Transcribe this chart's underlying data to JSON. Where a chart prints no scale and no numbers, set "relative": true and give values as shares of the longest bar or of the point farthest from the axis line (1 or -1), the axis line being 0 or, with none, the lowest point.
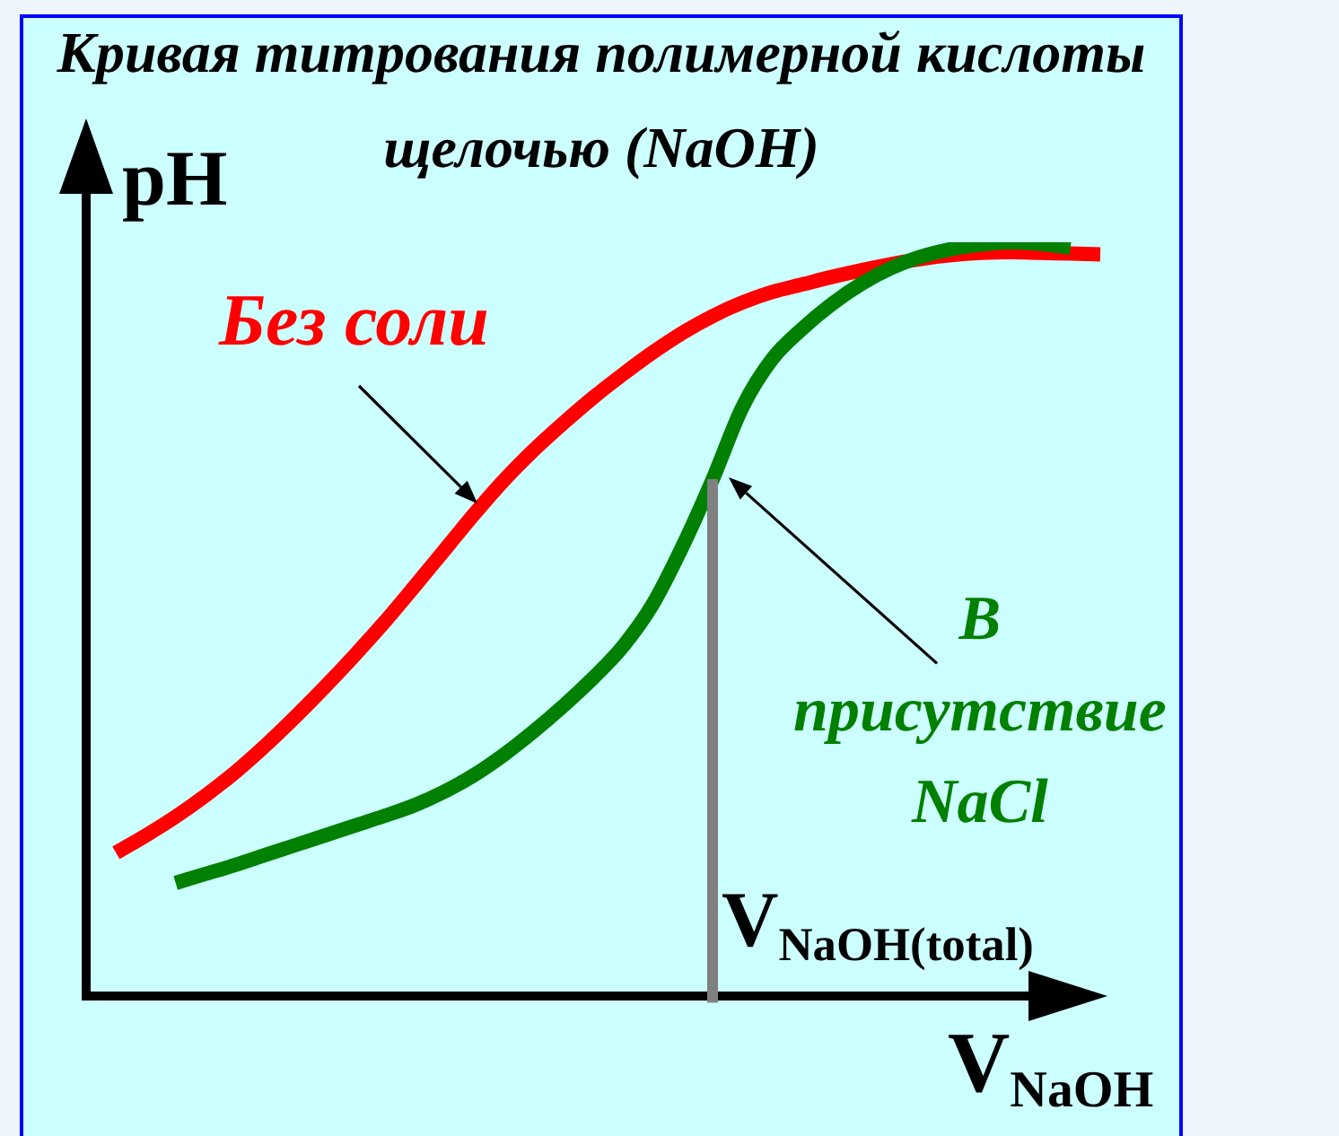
{
  "chart_data": {
    "type": "line",
    "title": "Кривая титрования полимерной кислоты щелочью (NaOH)",
    "xlabel": "V$_{NaOH}$",
    "ylabel": "pH",
    "relative": true,
    "marker": "none",
    "line_style": "solid",
    "categories": [
      null,
      null,
      null,
      null,
      null,
      null,
      null,
      null,
      null,
      null,
      null,
      null,
      null,
      null,
      null,
      null,
      null,
      null,
      null,
      null,
      null,
      null,
      null,
      null,
      null,
      null,
      null,
      null,
      null,
      null,
      null,
      null,
      null,
      null,
      null
    ],
    "series": [
      {
        "name": "Без соли",
        "color": "#ff0000",
        "values": [
          null,
          0.19,
          0.213,
          0.238,
          0.266,
          0.297,
          0.332,
          0.37,
          0.41,
          0.452,
          0.496,
          0.543,
          0.591,
          0.639,
          0.684,
          0.724,
          0.76,
          0.794,
          0.825,
          0.854,
          0.88,
          0.902,
          0.92,
          0.934,
          0.944,
          0.954,
          0.963,
          0.971,
          0.978,
          0.983,
          0.986,
          0.987,
          0.986,
          0.985,
          0.984
        ]
      },
      {
        "name": "В присутствие NaCl",
        "color": "#008000",
        "values": [
          null,
          null,
          null,
          0.15,
          0.162,
          0.174,
          0.187,
          0.2,
          0.213,
          0.226,
          0.239,
          0.253,
          0.271,
          0.293,
          0.32,
          0.351,
          0.385,
          0.422,
          0.464,
          0.52,
          0.597,
          0.685,
          0.781,
          0.845,
          0.885,
          0.918,
          0.945,
          0.966,
          0.981,
          0.991,
          0.997,
          1.0,
          0.998,
          0.993,
          null
        ]
      }
    ],
    "annotations": [
      "V$_{NaOH(total)}$"
    ]
  }
}
